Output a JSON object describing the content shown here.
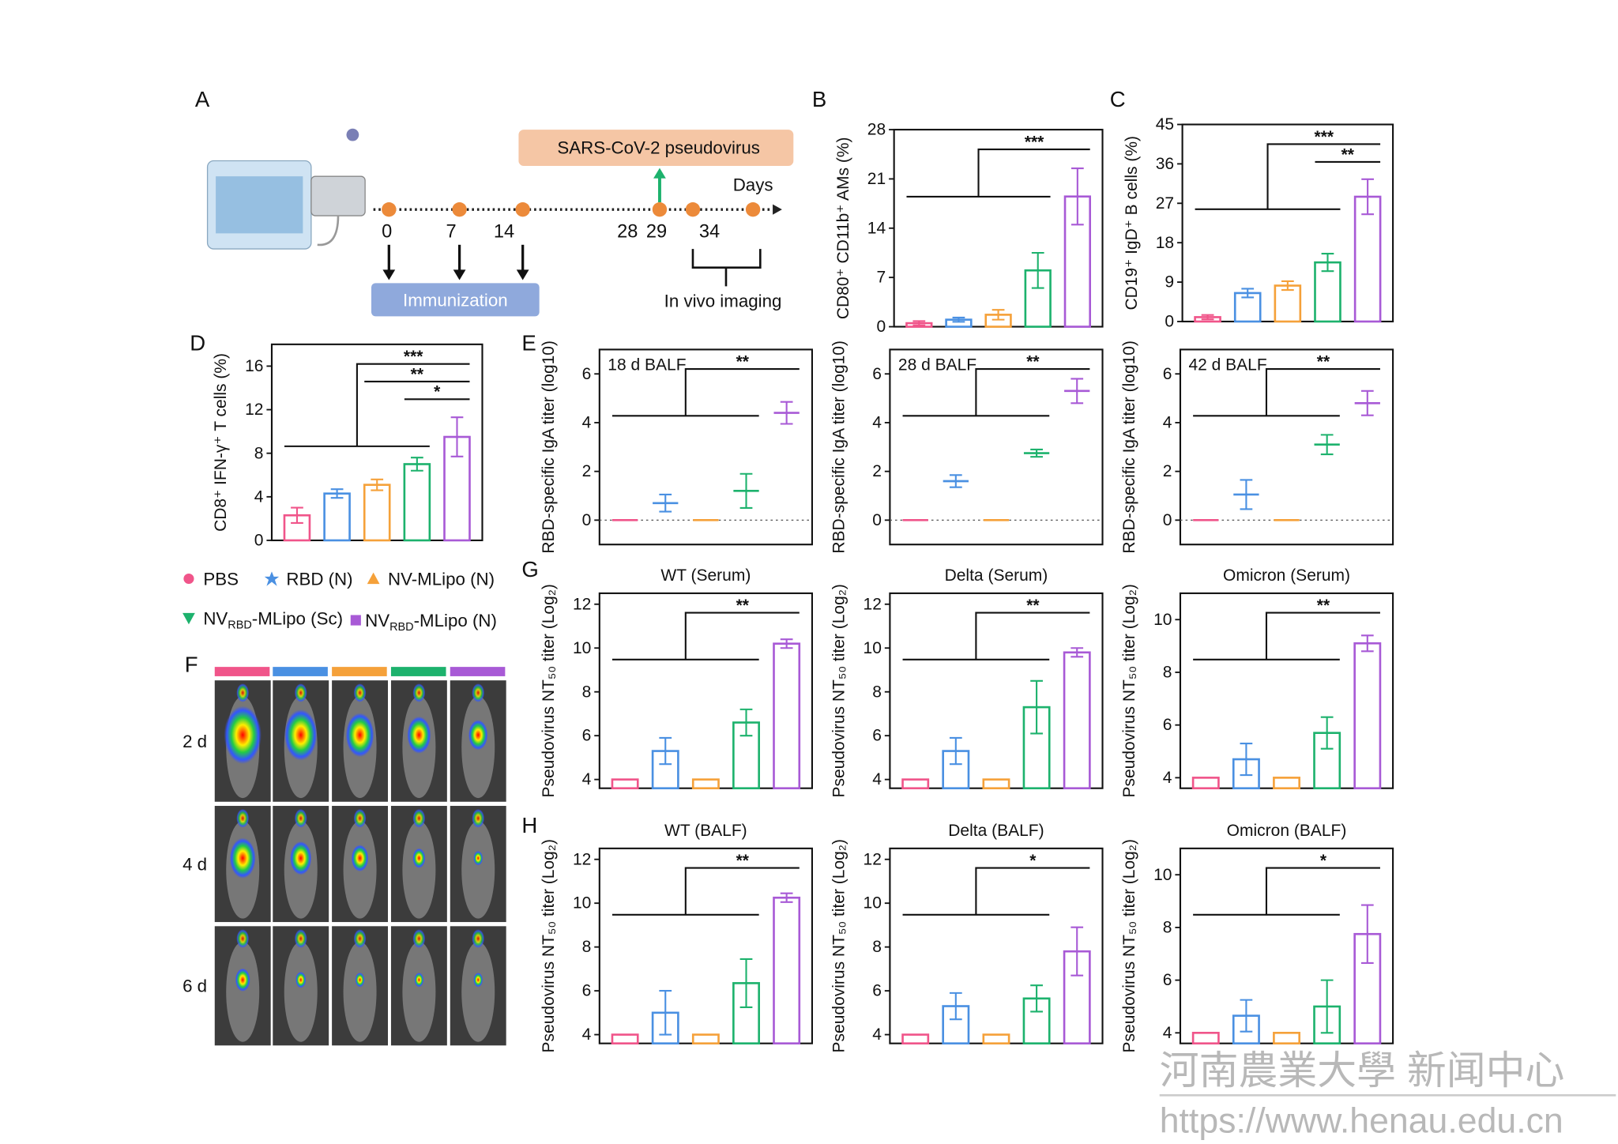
{
  "panel_labels": [
    "A",
    "B",
    "C",
    "D",
    "E",
    "F",
    "G",
    "H"
  ],
  "panel_a": {
    "virus": "SARS-CoV-2 pseudovirus",
    "days_label": "Days",
    "days": [
      "0",
      "7",
      "14",
      "28",
      "29",
      "34"
    ],
    "immunization": "Immunization",
    "imaging": "In vivo imaging"
  },
  "legend": {
    "items": [
      {
        "name": [
          "PBS"
        ],
        "color": "#f0558a"
      },
      {
        "name": [
          "RBD (N)"
        ],
        "color": "#4a90e2"
      },
      {
        "name": [
          "NV-MLipo (N)"
        ],
        "color": "#f5a13a"
      },
      {
        "name": [
          "NV",
          "RBD",
          "-MLipo (Sc)"
        ],
        "color": "#1db26d"
      },
      {
        "name": [
          "NV",
          "RBD",
          "-MLipo (N)"
        ],
        "color": "#a85ad6"
      }
    ]
  },
  "panel_f": {
    "rows": [
      "2 d",
      "4 d",
      "6 d"
    ]
  },
  "watermark": [
    "河南農業大學 新闻中心",
    "https://www.henau.edu.cn"
  ],
  "chart_data": [
    {
      "type": "bar",
      "ylabel": "CD80⁺ CD11b⁺ AMs (%)",
      "ylim": [
        0,
        28
      ],
      "yticks": [
        0,
        7,
        14,
        21,
        28
      ],
      "values": [
        0.5,
        1,
        1.7,
        8,
        18.5
      ],
      "errors": [
        0.3,
        0.3,
        0.7,
        2.5,
        4
      ],
      "annotations": [
        "***"
      ]
    },
    {
      "type": "bar",
      "ylabel": "CD19⁺ IgD⁺ B cells (%)",
      "ylim": [
        0,
        45
      ],
      "yticks": [
        0,
        9,
        18,
        27,
        36,
        45
      ],
      "values": [
        1,
        6.5,
        8.2,
        13.5,
        28.5
      ],
      "errors": [
        0.5,
        1,
        1,
        2,
        4
      ],
      "annotations": [
        "***",
        "**"
      ]
    },
    {
      "type": "bar",
      "ylabel": "CD8⁺ IFN-γ⁺ T cells (%)",
      "ylim": [
        0,
        18
      ],
      "yticks": [
        0,
        4,
        8,
        12,
        16
      ],
      "values": [
        2.3,
        4.3,
        5.1,
        7,
        9.5
      ],
      "errors": [
        0.7,
        0.4,
        0.5,
        0.6,
        1.8
      ],
      "annotations": [
        "***",
        "**",
        "*"
      ]
    },
    {
      "type": "dot",
      "ylabel": "RBD-specific IgA titer (log10)",
      "inset": "18 d BALF",
      "ylim": [
        -1,
        7
      ],
      "yticks": [
        0,
        2,
        4,
        6
      ],
      "reference_line": 0,
      "values": [
        0,
        0.7,
        0,
        1.2,
        4.4
      ],
      "errors": [
        0,
        0.35,
        0,
        0.7,
        0.45
      ],
      "annotations": [
        "**"
      ]
    },
    {
      "type": "dot",
      "ylabel": "RBD-specific IgA titer (log10)",
      "inset": "28 d BALF",
      "ylim": [
        -1,
        7
      ],
      "yticks": [
        0,
        2,
        4,
        6
      ],
      "reference_line": 0,
      "values": [
        0,
        1.6,
        0,
        2.75,
        5.3
      ],
      "errors": [
        0,
        0.25,
        0,
        0.15,
        0.5
      ],
      "annotations": [
        "**"
      ]
    },
    {
      "type": "dot",
      "ylabel": "RBD-specific IgA titer (log10)",
      "inset": "42 d BALF",
      "ylim": [
        -1,
        7
      ],
      "yticks": [
        0,
        2,
        4,
        6
      ],
      "reference_line": 0,
      "values": [
        0,
        1.05,
        0,
        3.1,
        4.8
      ],
      "errors": [
        0,
        0.6,
        0,
        0.4,
        0.5
      ],
      "annotations": [
        "**"
      ]
    },
    {
      "type": "bar",
      "title": "WT (Serum)",
      "ylabel": "Pseudovirus NT₅₀ titer (Log₂)",
      "ylim": [
        3.6,
        12.5
      ],
      "yticks": [
        4,
        6,
        8,
        10,
        12
      ],
      "values": [
        4,
        5.3,
        4,
        6.6,
        10.2
      ],
      "errors": [
        0,
        0.6,
        0,
        0.6,
        0.2
      ],
      "annotations": [
        "**"
      ]
    },
    {
      "type": "bar",
      "title": "Delta (Serum)",
      "ylabel": "Pseudovirus NT₅₀ titer (Log₂)",
      "ylim": [
        3.6,
        12.5
      ],
      "yticks": [
        4,
        6,
        8,
        10,
        12
      ],
      "values": [
        4,
        5.3,
        4,
        7.3,
        9.8
      ],
      "errors": [
        0,
        0.6,
        0,
        1.2,
        0.2
      ],
      "annotations": [
        "**"
      ]
    },
    {
      "type": "bar",
      "title": "Omicron (Serum)",
      "ylabel": "Pseudovirus NT₅₀ titer (Log₂)",
      "ylim": [
        3.6,
        11
      ],
      "yticks": [
        4,
        6,
        8,
        10
      ],
      "values": [
        4,
        4.7,
        4,
        5.7,
        9.1
      ],
      "errors": [
        0,
        0.6,
        0,
        0.6,
        0.3
      ],
      "annotations": [
        "**"
      ]
    },
    {
      "type": "bar",
      "title": "WT (BALF)",
      "ylabel": "Pseudovirus NT₅₀ titer (Log₂)",
      "ylim": [
        3.6,
        12.5
      ],
      "yticks": [
        4,
        6,
        8,
        10,
        12
      ],
      "values": [
        4,
        5,
        4,
        6.35,
        10.25
      ],
      "errors": [
        0,
        1,
        0,
        1.1,
        0.2
      ],
      "annotations": [
        "**"
      ]
    },
    {
      "type": "bar",
      "title": "Delta (BALF)",
      "ylabel": "Pseudovirus NT₅₀ titer (Log₂)",
      "ylim": [
        3.6,
        12.5
      ],
      "yticks": [
        4,
        6,
        8,
        10,
        12
      ],
      "values": [
        4,
        5.3,
        4,
        5.65,
        7.8
      ],
      "errors": [
        0,
        0.6,
        0,
        0.6,
        1.1
      ],
      "annotations": [
        "*"
      ]
    },
    {
      "type": "bar",
      "title": "Omicron (BALF)",
      "ylabel": "Pseudovirus NT₅₀ titer (Log₂)",
      "ylim": [
        3.6,
        11
      ],
      "yticks": [
        4,
        6,
        8,
        10
      ],
      "values": [
        4,
        4.65,
        4,
        5,
        7.75
      ],
      "errors": [
        0,
        0.6,
        0,
        1,
        1.1
      ],
      "annotations": [
        "*"
      ]
    }
  ]
}
